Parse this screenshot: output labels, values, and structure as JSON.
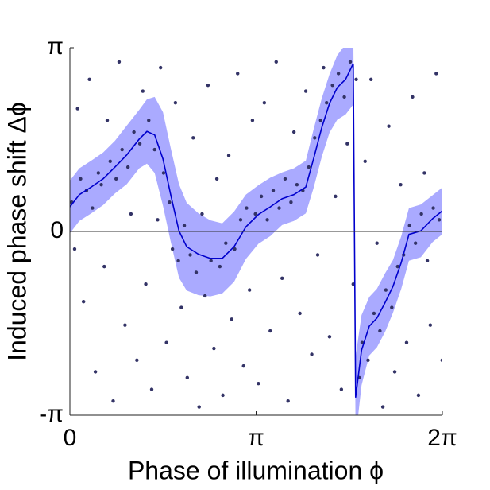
{
  "chart_data": {
    "type": "scatter",
    "xlabel": "Phase of illumination ϕ",
    "ylabel": "Induced phase shift Δϕ",
    "xlim": [
      0,
      6.28319
    ],
    "ylim": [
      -3.14159,
      3.14159
    ],
    "xticks": [
      0,
      {
        "value": 3.14159,
        "label": "π"
      },
      {
        "value": 6.28319,
        "label": "2π"
      }
    ],
    "yticks": [
      {
        "value": -3.14159,
        "label": "-π"
      },
      0,
      {
        "value": 3.14159,
        "label": "π"
      }
    ],
    "hline": 0,
    "grid": false,
    "points": {
      "color": "#333366",
      "x": [
        0.03,
        0.08,
        0.13,
        0.18,
        0.23,
        0.28,
        0.33,
        0.38,
        0.43,
        0.48,
        0.53,
        0.58,
        0.63,
        0.68,
        0.73,
        0.78,
        0.83,
        0.88,
        0.93,
        0.98,
        1.03,
        1.08,
        1.13,
        1.18,
        1.23,
        1.28,
        1.33,
        1.38,
        1.43,
        1.48,
        1.53,
        1.58,
        1.63,
        1.68,
        1.73,
        1.78,
        1.83,
        1.88,
        1.93,
        1.98,
        2.03,
        2.08,
        2.13,
        2.18,
        2.23,
        2.28,
        2.33,
        2.38,
        2.43,
        2.48,
        2.53,
        2.58,
        2.63,
        2.68,
        2.73,
        2.78,
        2.83,
        2.88,
        2.93,
        2.98,
        3.03,
        3.08,
        3.13,
        3.18,
        3.23,
        3.28,
        3.33,
        3.38,
        3.43,
        3.48,
        3.53,
        3.58,
        3.63,
        3.68,
        3.73,
        3.78,
        3.83,
        3.88,
        3.93,
        3.98,
        4.03,
        4.08,
        4.13,
        4.18,
        4.23,
        4.28,
        4.33,
        4.38,
        4.43,
        4.48,
        4.53,
        4.58,
        4.63,
        4.68,
        4.73,
        4.78,
        4.83,
        4.88,
        4.93,
        4.98,
        5.03,
        5.08,
        5.13,
        5.18,
        5.23,
        5.28,
        5.33,
        5.38,
        5.43,
        5.48,
        5.53,
        5.58,
        5.63,
        5.68,
        5.73,
        5.78,
        5.83,
        5.88,
        5.93,
        5.98,
        6.03,
        6.08,
        6.13,
        6.18,
        6.23,
        6.28
      ],
      "y": [
        0.5,
        -0.3,
        2.1,
        0.9,
        -1.2,
        0.7,
        2.6,
        0.4,
        -2.4,
        1.0,
        0.8,
        -0.6,
        1.9,
        1.2,
        -2.9,
        0.9,
        2.9,
        1.4,
        -1.6,
        1.1,
        0.3,
        1.7,
        -2.2,
        1.5,
        2.4,
        -0.9,
        1.9,
        -2.7,
        1.4,
        0.2,
        2.8,
        1.0,
        -1.9,
        0.5,
        -0.3,
        2.2,
        -0.5,
        -1.3,
        0.1,
        -2.5,
        -0.4,
        1.6,
        -0.7,
        -3.0,
        0.3,
        -1.1,
        2.5,
        -0.5,
        -2.0,
        0.9,
        -0.6,
        -2.8,
        -0.2,
        1.3,
        -1.5,
        -0.3,
        2.7,
        0.2,
        -2.3,
        0.4,
        -1.0,
        1.9,
        0.3,
        -2.6,
        0.6,
        2.2,
        0.2,
        -1.7,
        0.7,
        2.9,
        0.4,
        -0.8,
        0.9,
        -2.9,
        0.5,
        1.7,
        0.8,
        -1.4,
        0.7,
        2.4,
        1.1,
        -2.1,
        1.6,
        -0.4,
        1.9,
        2.8,
        2.2,
        -1.8,
        2.5,
        0.6,
        2.7,
        -2.7,
        2.3,
        1.5,
        2.9,
        -0.9,
        2.6,
        -2.5,
        -1.9,
        1.2,
        -2.2,
        2.6,
        -1.4,
        -0.2,
        -1.7,
        -3.0,
        -1.0,
        1.8,
        -1.3,
        -2.4,
        -0.6,
        0.8,
        -0.4,
        -1.9,
        0.1,
        2.3,
        -0.2,
        -2.8,
        0.3,
        1.0,
        -0.5,
        -1.6,
        0.4,
        2.7,
        0.2,
        -2.2
      ]
    },
    "mean": {
      "color": "#0000cc",
      "band_color": "#aaaaff",
      "x": [
        0,
        0.16,
        0.36,
        0.56,
        0.76,
        0.96,
        1.17,
        1.3,
        1.43,
        1.57,
        1.7,
        1.84,
        1.97,
        2.17,
        2.37,
        2.57,
        2.77,
        2.97,
        3.18,
        3.38,
        3.58,
        3.78,
        3.98,
        4.11,
        4.25,
        4.38,
        4.51,
        4.65,
        4.78,
        4.82,
        4.92,
        5.05,
        5.18,
        5.32,
        5.45,
        5.59,
        5.72,
        5.92,
        6.12,
        6.28
      ],
      "values": [
        0.42,
        0.63,
        0.76,
        0.9,
        1.1,
        1.31,
        1.58,
        1.71,
        1.65,
        1.24,
        0.63,
        0.01,
        -0.26,
        -0.39,
        -0.46,
        -0.46,
        -0.26,
        0.08,
        0.29,
        0.42,
        0.56,
        0.63,
        0.76,
        1.24,
        1.78,
        2.19,
        2.46,
        2.6,
        2.87,
        -2.84,
        -2.03,
        -1.62,
        -1.48,
        -1.21,
        -0.94,
        -0.53,
        -0.05,
        0.01,
        0.22,
        0.35
      ],
      "errors": [
        0.45,
        0.45,
        0.45,
        0.45,
        0.45,
        0.5,
        0.5,
        0.55,
        0.65,
        0.8,
        0.8,
        0.8,
        0.75,
        0.7,
        0.65,
        0.6,
        0.6,
        0.55,
        0.5,
        0.5,
        0.45,
        0.45,
        0.45,
        0.5,
        0.5,
        0.5,
        0.55,
        0.6,
        0.7,
        0.7,
        0.6,
        0.5,
        0.5,
        0.5,
        0.45,
        0.45,
        0.45,
        0.45,
        0.4,
        0.4
      ]
    }
  }
}
